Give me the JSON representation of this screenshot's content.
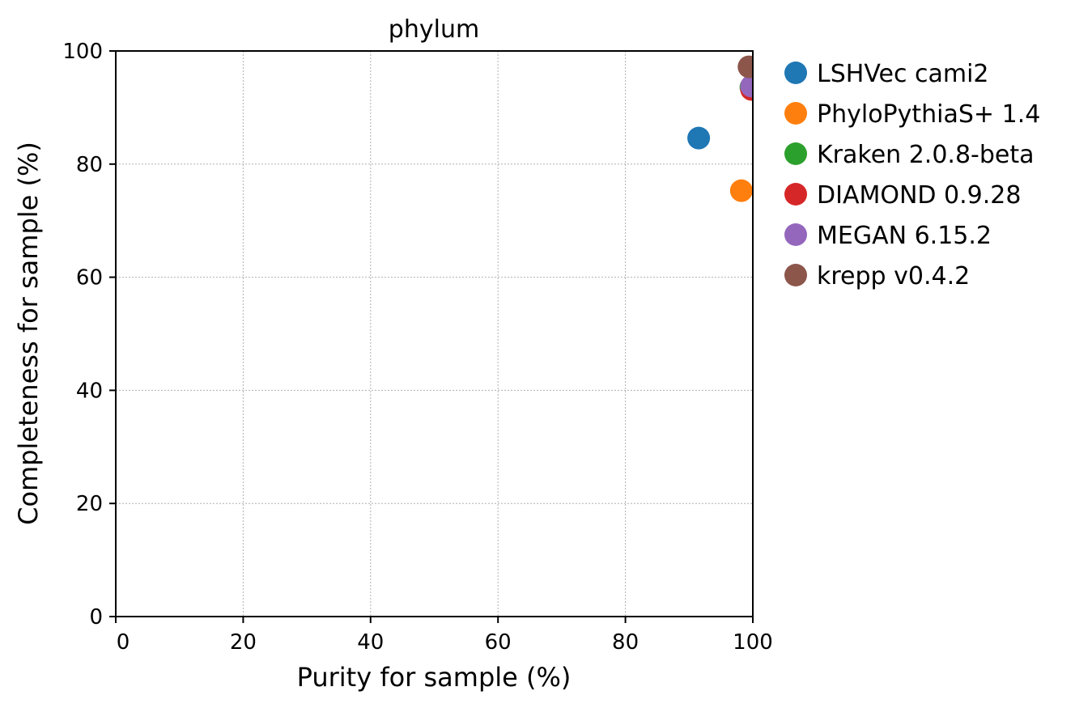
{
  "chart_data": {
    "type": "scatter",
    "title": "phylum",
    "xlabel": "Purity for sample (%)",
    "ylabel": "Completeness for sample (%)",
    "xlim": [
      0,
      100
    ],
    "ylim": [
      0,
      100
    ],
    "xticks": [
      "0",
      "20",
      "40",
      "60",
      "80",
      "100"
    ],
    "yticks": [
      "0",
      "20",
      "40",
      "60",
      "80",
      "100"
    ],
    "grid": true,
    "legend_position": "outside-right",
    "series": [
      {
        "name": "LSHVec cami2",
        "color": "#1f77b4",
        "x": 91.5,
        "y": 84.6
      },
      {
        "name": "PhyloPythiaS+ 1.4",
        "color": "#ff7f0e",
        "x": 98.2,
        "y": 75.3
      },
      {
        "name": "Kraken 2.0.8-beta",
        "color": "#2ca02c",
        "x": 99.7,
        "y": 93.6
      },
      {
        "name": "DIAMOND 0.9.28",
        "color": "#d62728",
        "x": 99.8,
        "y": 93.2
      },
      {
        "name": "MEGAN 6.15.2",
        "color": "#9467bd",
        "x": 99.8,
        "y": 93.8
      },
      {
        "name": "krepp v0.4.2",
        "color": "#8c564b",
        "x": 99.4,
        "y": 97.2
      }
    ]
  }
}
